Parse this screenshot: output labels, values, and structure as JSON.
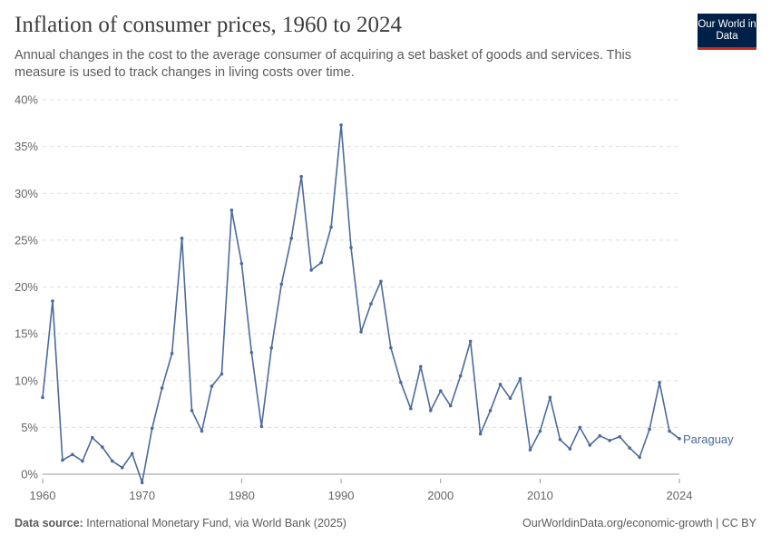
{
  "header": {
    "title": "Inflation of consumer prices, 1960 to 2024",
    "subtitle": "Annual changes in the cost to the average consumer of acquiring a set basket of goods and services. This measure is used to track changes in living costs over time.",
    "logo_text": "Our World in Data"
  },
  "footer": {
    "source_label": "Data source:",
    "source_text": "International Monetary Fund, via World Bank (2025)",
    "credit": "OurWorldinData.org/economic-growth | CC BY"
  },
  "chart_data": {
    "type": "line",
    "title": "Inflation of consumer prices, 1960 to 2024",
    "xlabel": "",
    "ylabel": "",
    "xlim": [
      1960,
      2024
    ],
    "ylim": [
      0,
      40
    ],
    "grid": "horizontal dashed",
    "x_ticks": [
      "1960",
      "1970",
      "1980",
      "1990",
      "2000",
      "2010",
      "2024"
    ],
    "y_ticks": [
      "0%",
      "5%",
      "10%",
      "15%",
      "20%",
      "25%",
      "30%",
      "35%",
      "40%"
    ],
    "colors": {
      "series": "#4c6a9c"
    },
    "x": [
      1960,
      1961,
      1962,
      1963,
      1964,
      1965,
      1966,
      1967,
      1968,
      1969,
      1970,
      1971,
      1972,
      1973,
      1974,
      1975,
      1976,
      1977,
      1978,
      1979,
      1980,
      1981,
      1982,
      1983,
      1984,
      1985,
      1986,
      1987,
      1988,
      1989,
      1990,
      1991,
      1992,
      1993,
      1994,
      1995,
      1996,
      1997,
      1998,
      1999,
      2000,
      2001,
      2002,
      2003,
      2004,
      2005,
      2006,
      2007,
      2008,
      2009,
      2010,
      2011,
      2012,
      2013,
      2014,
      2015,
      2016,
      2017,
      2018,
      2019,
      2020,
      2021,
      2022,
      2023,
      2024
    ],
    "series": [
      {
        "name": "Paraguay",
        "values": [
          8.2,
          18.5,
          1.5,
          2.1,
          1.4,
          3.9,
          2.9,
          1.4,
          0.7,
          2.2,
          -0.9,
          4.9,
          9.2,
          12.9,
          25.2,
          6.8,
          4.6,
          9.4,
          10.7,
          28.2,
          22.5,
          13.0,
          5.1,
          13.5,
          20.3,
          25.2,
          31.8,
          21.8,
          22.6,
          26.4,
          37.3,
          24.2,
          15.2,
          18.2,
          20.6,
          13.5,
          9.8,
          7.0,
          11.5,
          6.8,
          8.9,
          7.3,
          10.5,
          14.2,
          4.3,
          6.8,
          9.6,
          8.1,
          10.2,
          2.6,
          4.6,
          8.2,
          3.7,
          2.7,
          5.0,
          3.1,
          4.1,
          3.6,
          4.0,
          2.8,
          1.8,
          4.8,
          9.8,
          4.6,
          3.8
        ]
      }
    ]
  }
}
